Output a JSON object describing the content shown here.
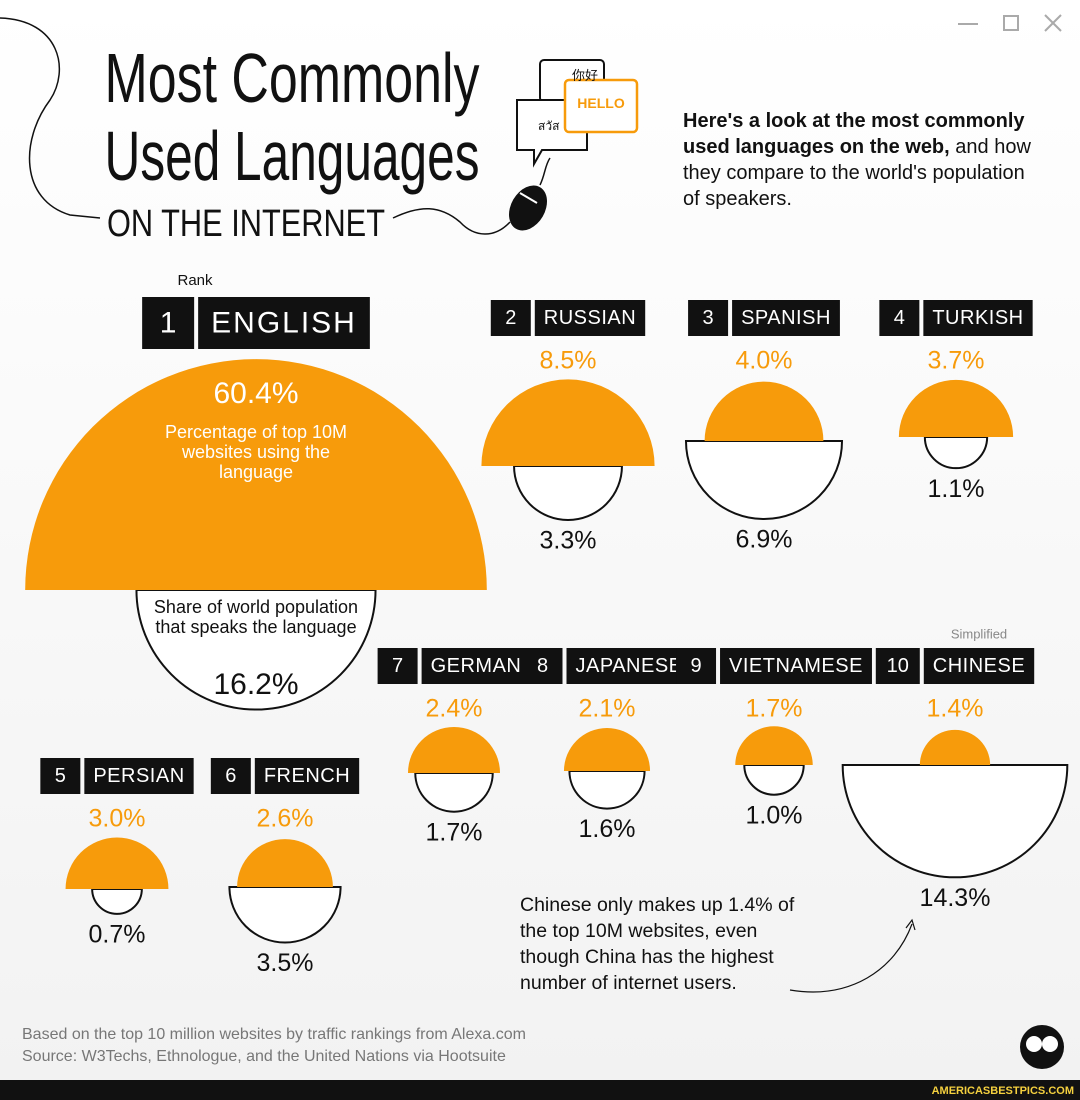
{
  "chart_data": {
    "type": "semicircle",
    "title": [
      "Most Commonly",
      "Used Languages"
    ],
    "subtitle": "ON THE INTERNET",
    "icon_texts": [
      "你好",
      "HELLO",
      "สวัส"
    ],
    "description_bold": "Here's a look at the most commonly used languages on the web,",
    "description": "and how they compare to the world's population of speakers.",
    "rank_label": "Rank",
    "ranks": [
      1,
      2,
      3,
      4,
      5,
      6,
      7,
      8,
      9,
      10
    ],
    "categories": [
      "ENGLISH",
      "RUSSIAN",
      "SPANISH",
      "TURKISH",
      "PERSIAN",
      "FRENCH",
      "GERMAN",
      "JAPANESE",
      "VIETNAMESE",
      "CHINESE"
    ],
    "category_notes": [
      null,
      null,
      null,
      null,
      null,
      null,
      null,
      null,
      null,
      "Simplified"
    ],
    "series": [
      {
        "name": "Percentage of top 10M websites using the language",
        "color": "#f79b0b",
        "values": [
          60.4,
          8.5,
          4.0,
          3.7,
          3.0,
          2.6,
          2.4,
          2.1,
          1.7,
          1.4
        ],
        "value_labels": [
          "60.4%",
          "8.5%",
          "4.0%",
          "3.7%",
          "3.0%",
          "2.6%",
          "2.4%",
          "2.1%",
          "1.7%",
          "1.4%"
        ]
      },
      {
        "name": "Share of world population that speaks the language",
        "color": "#ffffff",
        "values": [
          16.2,
          3.3,
          6.9,
          1.1,
          0.7,
          3.5,
          1.7,
          1.6,
          1.0,
          14.3
        ],
        "value_labels": [
          "16.2%",
          "3.3%",
          "6.9%",
          "1.1%",
          "0.7%",
          "3.5%",
          "1.7%",
          "1.6%",
          "1.0%",
          "14.3%"
        ]
      }
    ],
    "annotation": "Chinese only makes up 1.4% of the top 10M websites, even though China has the highest number of internet users.",
    "footnote": "Based on the top 10 million websites by traffic rankings from Alexa.com",
    "source": "Source: W3Techs, Ethnologue, and the United Nations via Hootsuite",
    "watermark": "AMERICASBESTPICS.COM"
  }
}
